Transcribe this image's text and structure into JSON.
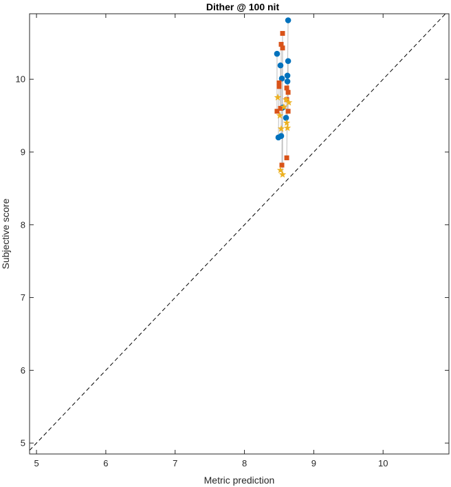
{
  "chart_data": {
    "type": "scatter",
    "title": "Dither @ 100 nit",
    "xlabel": "Metric prediction",
    "ylabel": "Subjective score",
    "xlim": [
      4.9,
      10.95
    ],
    "ylim": [
      4.85,
      10.9
    ],
    "xticks": [
      5,
      6,
      7,
      8,
      9,
      10
    ],
    "yticks": [
      5,
      6,
      7,
      8,
      9,
      10
    ],
    "xtick_labels": [
      "5",
      "6",
      "7",
      "8",
      "9",
      "10"
    ],
    "ytick_labels": [
      "5",
      "6",
      "7",
      "8",
      "9",
      "10"
    ],
    "grid": false,
    "reference_line": {
      "style": "dashed",
      "color": "#000000",
      "from": [
        4.9,
        4.9
      ],
      "to": [
        10.95,
        10.95
      ]
    },
    "connector_color": "#bdbdbd",
    "series": [
      {
        "marker": "circle",
        "color": "#0072bd",
        "points": [
          [
            8.63,
            10.81
          ],
          [
            8.47,
            10.35
          ],
          [
            8.63,
            10.25
          ],
          [
            8.52,
            10.19
          ],
          [
            8.62,
            10.05
          ],
          [
            8.54,
            10.01
          ],
          [
            8.62,
            9.97
          ],
          [
            8.55,
            9.61
          ],
          [
            8.6,
            9.47
          ],
          [
            8.53,
            9.22
          ],
          [
            8.49,
            9.2
          ]
        ]
      },
      {
        "marker": "square",
        "color": "#d95319",
        "points": [
          [
            8.55,
            10.63
          ],
          [
            8.53,
            10.48
          ],
          [
            8.55,
            10.43
          ],
          [
            8.5,
            9.95
          ],
          [
            8.5,
            9.9
          ],
          [
            8.61,
            9.88
          ],
          [
            8.63,
            9.82
          ],
          [
            8.61,
            9.72
          ],
          [
            8.52,
            9.6
          ],
          [
            8.47,
            9.56
          ],
          [
            8.63,
            9.56
          ],
          [
            8.54,
            8.82
          ],
          [
            8.61,
            8.92
          ]
        ]
      },
      {
        "marker": "star",
        "color": "#edb120",
        "points": [
          [
            8.48,
            9.75
          ],
          [
            8.6,
            9.72
          ],
          [
            8.64,
            9.68
          ],
          [
            8.57,
            9.62
          ],
          [
            8.51,
            9.5
          ],
          [
            8.61,
            9.4
          ],
          [
            8.53,
            9.32
          ],
          [
            8.62,
            9.33
          ],
          [
            8.52,
            8.75
          ],
          [
            8.55,
            8.69
          ]
        ]
      }
    ],
    "connectors": [
      [
        [
          8.63,
          10.81
        ],
        [
          8.61,
          8.92
        ]
      ],
      [
        [
          8.47,
          10.35
        ],
        [
          8.47,
          9.56
        ]
      ],
      [
        [
          8.55,
          10.63
        ],
        [
          8.54,
          8.82
        ]
      ],
      [
        [
          8.52,
          10.19
        ],
        [
          8.52,
          9.6
        ]
      ],
      [
        [
          8.53,
          10.48
        ],
        [
          8.53,
          9.22
        ]
      ],
      [
        [
          8.62,
          10.05
        ],
        [
          8.62,
          9.33
        ]
      ],
      [
        [
          8.55,
          10.43
        ],
        [
          8.55,
          8.69
        ]
      ],
      [
        [
          8.63,
          10.25
        ],
        [
          8.63,
          9.56
        ]
      ],
      [
        [
          8.5,
          9.95
        ],
        [
          8.49,
          9.2
        ]
      ],
      [
        [
          8.6,
          9.72
        ],
        [
          8.6,
          9.47
        ]
      ]
    ]
  }
}
